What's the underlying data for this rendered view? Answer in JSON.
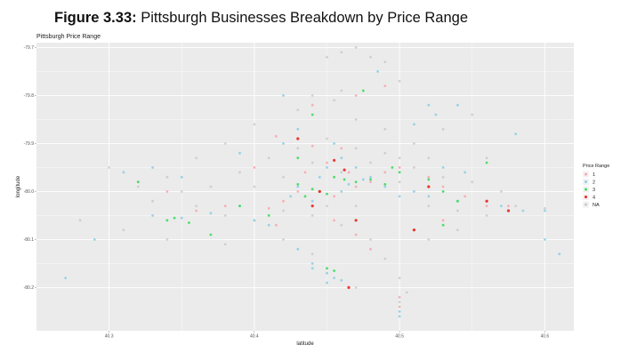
{
  "figure_caption": {
    "label": "Figure 3.33:",
    "text": "Pittsburgh Businesses Breakdown by Price Range"
  },
  "colors": {
    "panel_background": "#ebebeb",
    "grid": "#ffffff",
    "price_1": "#f8a8b0",
    "price_2": "#8ecfe6",
    "price_3": "#3adc5a",
    "price_4": "#e8261c",
    "price_na": "#c8c8c8"
  },
  "chart_data": {
    "type": "scatter",
    "title": "Pittsburgh Price Range",
    "xlabel": "latitude",
    "ylabel": "longitude",
    "xlim": [
      40.25,
      40.62
    ],
    "ylim": [
      -80.29,
      -79.69
    ],
    "x_ticks": [
      40.3,
      40.4,
      40.5,
      40.6
    ],
    "x_tick_labels": [
      "40.3",
      "40.4",
      "40.5",
      "40.6"
    ],
    "y_ticks": [
      -79.7,
      -79.8,
      -79.9,
      -80.0,
      -80.1,
      -80.2
    ],
    "y_tick_labels": [
      "-79.7",
      "-79.8",
      "-79.9",
      "-80.0",
      "-80.1",
      "-80.2"
    ],
    "legend": {
      "title": "Price Range",
      "position": "right",
      "entries": [
        "1",
        "2",
        "3",
        "4",
        "NA"
      ]
    },
    "series": [
      {
        "name": "1",
        "points": [
          [
            40.415,
            -79.885
          ],
          [
            40.44,
            -79.905
          ],
          [
            40.45,
            -79.94
          ],
          [
            40.465,
            -79.96
          ],
          [
            40.47,
            -79.99
          ],
          [
            40.455,
            -80.01
          ],
          [
            40.43,
            -80.0
          ],
          [
            40.42,
            -80.02
          ],
          [
            40.41,
            -80.035
          ],
          [
            40.48,
            -79.98
          ],
          [
            40.49,
            -79.96
          ],
          [
            40.5,
            -79.95
          ],
          [
            40.52,
            -79.97
          ],
          [
            40.53,
            -79.99
          ],
          [
            40.545,
            -80.01
          ],
          [
            40.56,
            -80.03
          ],
          [
            40.575,
            -80.03
          ],
          [
            40.38,
            -80.03
          ],
          [
            40.36,
            -80.04
          ],
          [
            40.34,
            -80.0
          ],
          [
            40.32,
            -79.98
          ],
          [
            40.44,
            -79.82
          ],
          [
            40.47,
            -79.8
          ],
          [
            40.49,
            -79.78
          ],
          [
            40.455,
            -80.06
          ],
          [
            40.47,
            -80.09
          ],
          [
            40.48,
            -80.12
          ],
          [
            40.5,
            -80.22
          ],
          [
            40.5,
            -80.24
          ],
          [
            40.46,
            -79.91
          ],
          [
            40.4,
            -79.95
          ],
          [
            40.435,
            -79.96
          ],
          [
            40.51,
            -80.08
          ],
          [
            40.53,
            -80.06
          ],
          [
            40.415,
            -80.07
          ]
        ]
      },
      {
        "name": "2",
        "points": [
          [
            40.465,
            -79.985
          ],
          [
            40.475,
            -79.975
          ],
          [
            40.46,
            -80.0
          ],
          [
            40.445,
            -79.97
          ],
          [
            40.43,
            -79.99
          ],
          [
            40.425,
            -80.01
          ],
          [
            40.44,
            -80.02
          ],
          [
            40.45,
            -79.95
          ],
          [
            40.46,
            -79.93
          ],
          [
            40.47,
            -79.95
          ],
          [
            40.48,
            -79.97
          ],
          [
            40.49,
            -79.99
          ],
          [
            40.5,
            -80.01
          ],
          [
            40.51,
            -80.0
          ],
          [
            40.52,
            -80.01
          ],
          [
            40.54,
            -80.02
          ],
          [
            40.56,
            -80.02
          ],
          [
            40.57,
            -80.03
          ],
          [
            40.585,
            -80.04
          ],
          [
            40.6,
            -80.04
          ],
          [
            40.33,
            -80.05
          ],
          [
            40.35,
            -80.055
          ],
          [
            40.37,
            -80.045
          ],
          [
            40.39,
            -80.03
          ],
          [
            40.31,
            -79.96
          ],
          [
            40.33,
            -79.95
          ],
          [
            40.35,
            -79.97
          ],
          [
            40.43,
            -79.87
          ],
          [
            40.42,
            -79.8
          ],
          [
            40.485,
            -79.75
          ],
          [
            40.455,
            -79.9
          ],
          [
            40.44,
            -80.16
          ],
          [
            40.45,
            -80.17
          ],
          [
            40.455,
            -80.18
          ],
          [
            40.46,
            -80.185
          ],
          [
            40.45,
            -80.19
          ],
          [
            40.44,
            -80.15
          ],
          [
            40.5,
            -80.26
          ],
          [
            40.5,
            -80.25
          ],
          [
            40.43,
            -80.12
          ],
          [
            40.41,
            -80.07
          ],
          [
            40.4,
            -80.06
          ],
          [
            40.53,
            -79.95
          ],
          [
            40.545,
            -79.96
          ],
          [
            40.42,
            -79.9
          ],
          [
            40.39,
            -79.92
          ],
          [
            40.58,
            -79.88
          ],
          [
            40.29,
            -80.1
          ],
          [
            40.27,
            -80.18
          ],
          [
            40.6,
            -80.1
          ],
          [
            40.61,
            -80.13
          ],
          [
            40.525,
            -79.84
          ],
          [
            40.51,
            -79.86
          ],
          [
            40.52,
            -79.82
          ],
          [
            40.54,
            -79.82
          ]
        ]
      },
      {
        "name": "3",
        "points": [
          [
            40.455,
            -79.97
          ],
          [
            40.462,
            -79.975
          ],
          [
            40.47,
            -79.98
          ],
          [
            40.445,
            -80.0
          ],
          [
            40.44,
            -79.995
          ],
          [
            40.435,
            -80.01
          ],
          [
            40.43,
            -79.985
          ],
          [
            40.45,
            -80.005
          ],
          [
            40.48,
            -79.975
          ],
          [
            40.49,
            -79.985
          ],
          [
            40.495,
            -79.95
          ],
          [
            40.5,
            -79.96
          ],
          [
            40.52,
            -79.975
          ],
          [
            40.53,
            -80.0
          ],
          [
            40.54,
            -80.02
          ],
          [
            40.45,
            -80.16
          ],
          [
            40.455,
            -80.165
          ],
          [
            40.34,
            -80.06
          ],
          [
            40.345,
            -80.055
          ],
          [
            40.355,
            -80.065
          ],
          [
            40.41,
            -80.05
          ],
          [
            40.37,
            -80.09
          ],
          [
            40.39,
            -80.03
          ],
          [
            40.475,
            -79.79
          ],
          [
            40.44,
            -79.84
          ],
          [
            40.53,
            -80.07
          ],
          [
            40.56,
            -79.94
          ],
          [
            40.32,
            -79.98
          ],
          [
            40.43,
            -79.93
          ]
        ]
      },
      {
        "name": "4",
        "points": [
          [
            40.43,
            -79.89
          ],
          [
            40.455,
            -79.935
          ],
          [
            40.462,
            -79.955
          ],
          [
            40.44,
            -80.03
          ],
          [
            40.47,
            -80.06
          ],
          [
            40.51,
            -80.08
          ],
          [
            40.56,
            -80.02
          ],
          [
            40.575,
            -80.04
          ],
          [
            40.465,
            -80.2
          ],
          [
            40.52,
            -79.99
          ],
          [
            40.445,
            -80.0
          ]
        ]
      },
      {
        "name": "NA",
        "points": [
          [
            40.45,
            -79.72
          ],
          [
            40.46,
            -79.71
          ],
          [
            40.47,
            -79.7
          ],
          [
            40.48,
            -79.72
          ],
          [
            40.49,
            -79.73
          ],
          [
            40.5,
            -79.77
          ],
          [
            40.44,
            -79.8
          ],
          [
            40.43,
            -79.83
          ],
          [
            40.47,
            -79.85
          ],
          [
            40.49,
            -79.87
          ],
          [
            40.51,
            -79.9
          ],
          [
            40.53,
            -79.87
          ],
          [
            40.55,
            -79.84
          ],
          [
            40.4,
            -79.86
          ],
          [
            40.38,
            -79.9
          ],
          [
            40.36,
            -79.93
          ],
          [
            40.34,
            -79.97
          ],
          [
            40.32,
            -79.99
          ],
          [
            40.3,
            -79.95
          ],
          [
            40.33,
            -80.02
          ],
          [
            40.36,
            -80.03
          ],
          [
            40.38,
            -80.05
          ],
          [
            40.4,
            -80.06
          ],
          [
            40.42,
            -80.04
          ],
          [
            40.44,
            -80.05
          ],
          [
            40.46,
            -80.07
          ],
          [
            40.48,
            -80.1
          ],
          [
            40.49,
            -80.14
          ],
          [
            40.5,
            -80.18
          ],
          [
            40.505,
            -80.21
          ],
          [
            40.5,
            -80.23
          ],
          [
            40.52,
            -80.1
          ],
          [
            40.54,
            -80.08
          ],
          [
            40.56,
            -80.05
          ],
          [
            40.58,
            -80.03
          ],
          [
            40.6,
            -80.035
          ],
          [
            40.57,
            -80.0
          ],
          [
            40.55,
            -79.98
          ],
          [
            40.53,
            -79.97
          ],
          [
            40.51,
            -79.95
          ],
          [
            40.49,
            -79.92
          ],
          [
            40.47,
            -79.91
          ],
          [
            40.45,
            -79.89
          ],
          [
            40.43,
            -79.91
          ],
          [
            40.41,
            -79.93
          ],
          [
            40.39,
            -79.96
          ],
          [
            40.37,
            -79.99
          ],
          [
            40.35,
            -80.0
          ],
          [
            40.4,
            -79.99
          ],
          [
            40.42,
            -79.97
          ],
          [
            40.44,
            -79.94
          ],
          [
            40.46,
            -79.96
          ],
          [
            40.48,
            -79.94
          ],
          [
            40.5,
            -79.93
          ],
          [
            40.52,
            -79.93
          ],
          [
            40.56,
            -79.93
          ],
          [
            40.46,
            -79.79
          ],
          [
            40.455,
            -79.81
          ],
          [
            40.42,
            -80.1
          ],
          [
            40.38,
            -80.11
          ],
          [
            40.34,
            -80.1
          ],
          [
            40.31,
            -80.08
          ],
          [
            40.28,
            -80.06
          ],
          [
            40.47,
            -80.2
          ],
          [
            40.44,
            -80.13
          ],
          [
            40.52,
            -80.03
          ],
          [
            40.54,
            -80.04
          ],
          [
            40.5,
            -79.98
          ],
          [
            40.47,
            -80.03
          ],
          [
            40.45,
            -80.03
          ]
        ]
      }
    ]
  }
}
